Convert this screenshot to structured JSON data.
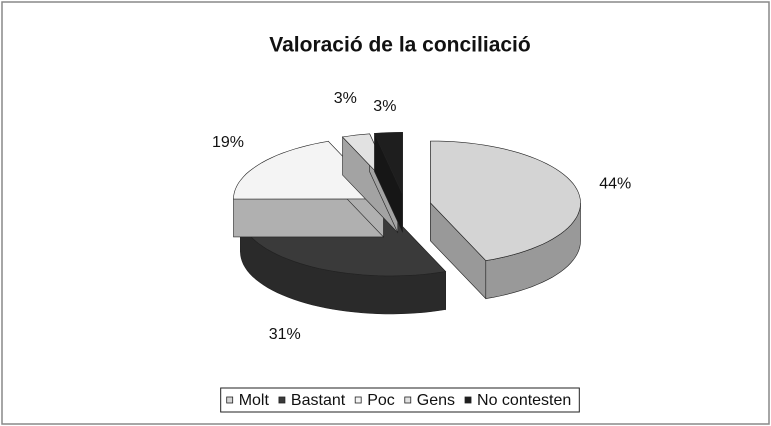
{
  "chart_data": {
    "type": "pie",
    "title": "Valoració de la conciliació",
    "categories": [
      "Molt",
      "Bastant",
      "Poc",
      "Gens",
      "No contesten"
    ],
    "values": [
      44,
      31,
      19,
      3,
      3
    ],
    "value_labels": [
      "44%",
      "31%",
      "19%",
      "3%",
      "3%"
    ],
    "colors": [
      "#d4d4d4",
      "#3a3a3a",
      "#f4f4f4",
      "#e2e2e2",
      "#1e1e1e"
    ],
    "legend": "bottom"
  }
}
